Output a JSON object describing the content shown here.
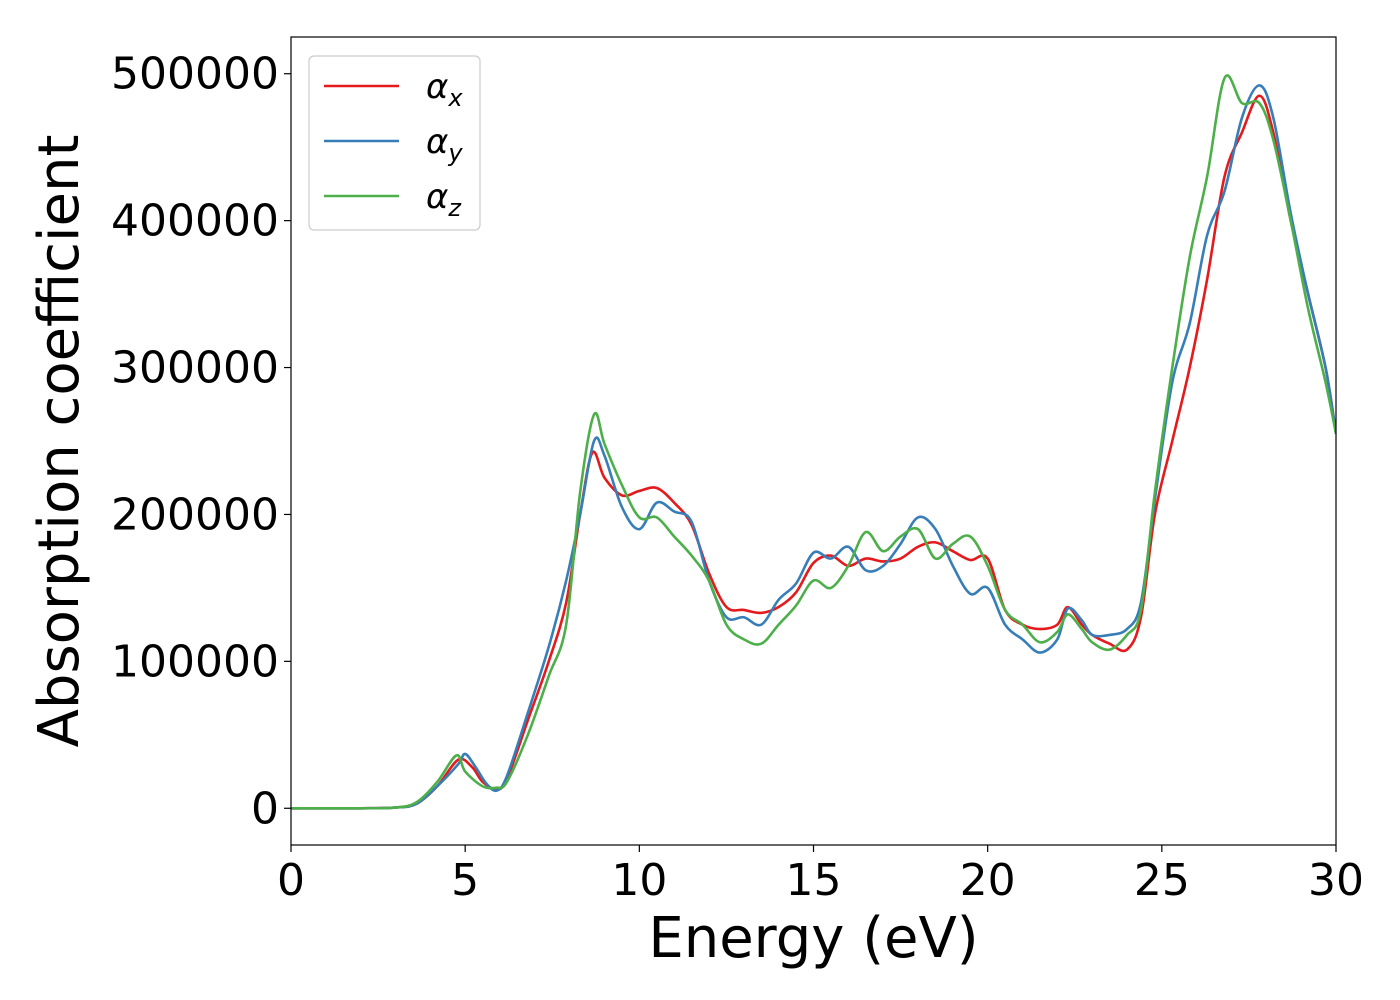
{
  "chart_data": {
    "type": "line",
    "xlabel": "Energy (eV)",
    "ylabel": "Absorption coefficient",
    "xlim": [
      0,
      30
    ],
    "ylim": [
      -25000,
      525000
    ],
    "x_ticks": [
      "0",
      "5",
      "10",
      "15",
      "20",
      "25",
      "30"
    ],
    "y_ticks": [
      "0",
      "100000",
      "200000",
      "300000",
      "400000",
      "500000"
    ],
    "grid": false,
    "legend_position": "top-left",
    "series": [
      {
        "name": "αx",
        "symbol": "α",
        "subscript": "x",
        "color": "#e41a1c",
        "points": [
          [
            0,
            0
          ],
          [
            2,
            0
          ],
          [
            3,
            500
          ],
          [
            3.6,
            3000
          ],
          [
            4.2,
            15000
          ],
          [
            4.8,
            33000
          ],
          [
            5.2,
            28000
          ],
          [
            5.5,
            18000
          ],
          [
            5.9,
            13000
          ],
          [
            6.2,
            20000
          ],
          [
            6.8,
            60000
          ],
          [
            7.4,
            100000
          ],
          [
            7.9,
            140000
          ],
          [
            8.3,
            200000
          ],
          [
            8.65,
            242000
          ],
          [
            9.0,
            225000
          ],
          [
            9.5,
            213000
          ],
          [
            10.0,
            216000
          ],
          [
            10.5,
            218000
          ],
          [
            11.0,
            208000
          ],
          [
            11.5,
            193000
          ],
          [
            12.0,
            160000
          ],
          [
            12.5,
            137000
          ],
          [
            13.0,
            135000
          ],
          [
            13.5,
            133000
          ],
          [
            14.0,
            137000
          ],
          [
            14.5,
            147000
          ],
          [
            15.0,
            167000
          ],
          [
            15.5,
            172000
          ],
          [
            16.0,
            165000
          ],
          [
            16.5,
            170000
          ],
          [
            17.0,
            168000
          ],
          [
            17.5,
            170000
          ],
          [
            18.0,
            178000
          ],
          [
            18.5,
            181000
          ],
          [
            19.0,
            175000
          ],
          [
            19.5,
            169000
          ],
          [
            20.0,
            170000
          ],
          [
            20.5,
            135000
          ],
          [
            21.0,
            125000
          ],
          [
            21.5,
            122000
          ],
          [
            22.0,
            125000
          ],
          [
            22.3,
            137000
          ],
          [
            22.7,
            125000
          ],
          [
            23.0,
            118000
          ],
          [
            23.5,
            112000
          ],
          [
            24.0,
            108000
          ],
          [
            24.4,
            130000
          ],
          [
            24.8,
            200000
          ],
          [
            25.3,
            250000
          ],
          [
            25.8,
            300000
          ],
          [
            26.3,
            360000
          ],
          [
            26.8,
            430000
          ],
          [
            27.3,
            460000
          ],
          [
            27.8,
            485000
          ],
          [
            28.2,
            460000
          ],
          [
            28.7,
            400000
          ],
          [
            29.2,
            350000
          ],
          [
            29.7,
            300000
          ],
          [
            30.0,
            255000
          ]
        ]
      },
      {
        "name": "αy",
        "symbol": "α",
        "subscript": "y",
        "color": "#377eb8",
        "points": [
          [
            0,
            0
          ],
          [
            2,
            0
          ],
          [
            3,
            500
          ],
          [
            3.6,
            3000
          ],
          [
            4.2,
            15000
          ],
          [
            4.8,
            30000
          ],
          [
            5.0,
            37000
          ],
          [
            5.3,
            28000
          ],
          [
            5.6,
            17000
          ],
          [
            5.9,
            12000
          ],
          [
            6.2,
            22000
          ],
          [
            6.8,
            65000
          ],
          [
            7.4,
            110000
          ],
          [
            7.9,
            155000
          ],
          [
            8.3,
            200000
          ],
          [
            8.7,
            250000
          ],
          [
            9.0,
            240000
          ],
          [
            9.5,
            205000
          ],
          [
            10.0,
            190000
          ],
          [
            10.5,
            208000
          ],
          [
            11.0,
            202000
          ],
          [
            11.5,
            195000
          ],
          [
            12.0,
            155000
          ],
          [
            12.5,
            130000
          ],
          [
            13.0,
            130000
          ],
          [
            13.5,
            125000
          ],
          [
            14.0,
            142000
          ],
          [
            14.5,
            153000
          ],
          [
            15.0,
            174000
          ],
          [
            15.5,
            170000
          ],
          [
            16.0,
            178000
          ],
          [
            16.5,
            162000
          ],
          [
            17.0,
            165000
          ],
          [
            17.5,
            180000
          ],
          [
            18.0,
            198000
          ],
          [
            18.5,
            190000
          ],
          [
            19.0,
            165000
          ],
          [
            19.5,
            146000
          ],
          [
            20.0,
            150000
          ],
          [
            20.5,
            125000
          ],
          [
            21.0,
            115000
          ],
          [
            21.5,
            106000
          ],
          [
            22.0,
            115000
          ],
          [
            22.3,
            136000
          ],
          [
            22.7,
            128000
          ],
          [
            23.0,
            118000
          ],
          [
            23.5,
            118000
          ],
          [
            24.0,
            122000
          ],
          [
            24.4,
            140000
          ],
          [
            24.8,
            210000
          ],
          [
            25.3,
            290000
          ],
          [
            25.8,
            330000
          ],
          [
            26.3,
            390000
          ],
          [
            26.8,
            420000
          ],
          [
            27.3,
            470000
          ],
          [
            27.8,
            492000
          ],
          [
            28.2,
            470000
          ],
          [
            28.7,
            405000
          ],
          [
            29.2,
            350000
          ],
          [
            29.7,
            300000
          ],
          [
            30.0,
            255000
          ]
        ]
      },
      {
        "name": "αz",
        "symbol": "α",
        "subscript": "z",
        "color": "#4daf4a",
        "points": [
          [
            0,
            0
          ],
          [
            2,
            0
          ],
          [
            3,
            500
          ],
          [
            3.6,
            4000
          ],
          [
            4.2,
            18000
          ],
          [
            4.75,
            36000
          ],
          [
            5.0,
            25000
          ],
          [
            5.5,
            15000
          ],
          [
            5.9,
            14000
          ],
          [
            6.2,
            18000
          ],
          [
            6.8,
            50000
          ],
          [
            7.4,
            90000
          ],
          [
            7.9,
            125000
          ],
          [
            8.3,
            215000
          ],
          [
            8.7,
            268000
          ],
          [
            9.0,
            248000
          ],
          [
            9.5,
            220000
          ],
          [
            10.0,
            198000
          ],
          [
            10.5,
            198000
          ],
          [
            11.0,
            185000
          ],
          [
            11.5,
            172000
          ],
          [
            12.0,
            155000
          ],
          [
            12.5,
            125000
          ],
          [
            13.0,
            115000
          ],
          [
            13.5,
            112000
          ],
          [
            14.0,
            125000
          ],
          [
            14.5,
            138000
          ],
          [
            15.0,
            155000
          ],
          [
            15.5,
            150000
          ],
          [
            16.0,
            165000
          ],
          [
            16.5,
            188000
          ],
          [
            17.0,
            175000
          ],
          [
            17.5,
            185000
          ],
          [
            18.0,
            190000
          ],
          [
            18.5,
            170000
          ],
          [
            19.0,
            180000
          ],
          [
            19.5,
            185000
          ],
          [
            20.0,
            165000
          ],
          [
            20.5,
            135000
          ],
          [
            21.0,
            125000
          ],
          [
            21.5,
            113000
          ],
          [
            22.0,
            120000
          ],
          [
            22.3,
            132000
          ],
          [
            22.7,
            122000
          ],
          [
            23.0,
            113000
          ],
          [
            23.5,
            108000
          ],
          [
            24.0,
            118000
          ],
          [
            24.4,
            135000
          ],
          [
            24.8,
            215000
          ],
          [
            25.3,
            300000
          ],
          [
            25.8,
            375000
          ],
          [
            26.3,
            430000
          ],
          [
            26.8,
            497000
          ],
          [
            27.3,
            480000
          ],
          [
            27.8,
            480000
          ],
          [
            28.2,
            455000
          ],
          [
            28.7,
            400000
          ],
          [
            29.2,
            340000
          ],
          [
            29.7,
            290000
          ],
          [
            30.0,
            255000
          ]
        ]
      }
    ]
  }
}
